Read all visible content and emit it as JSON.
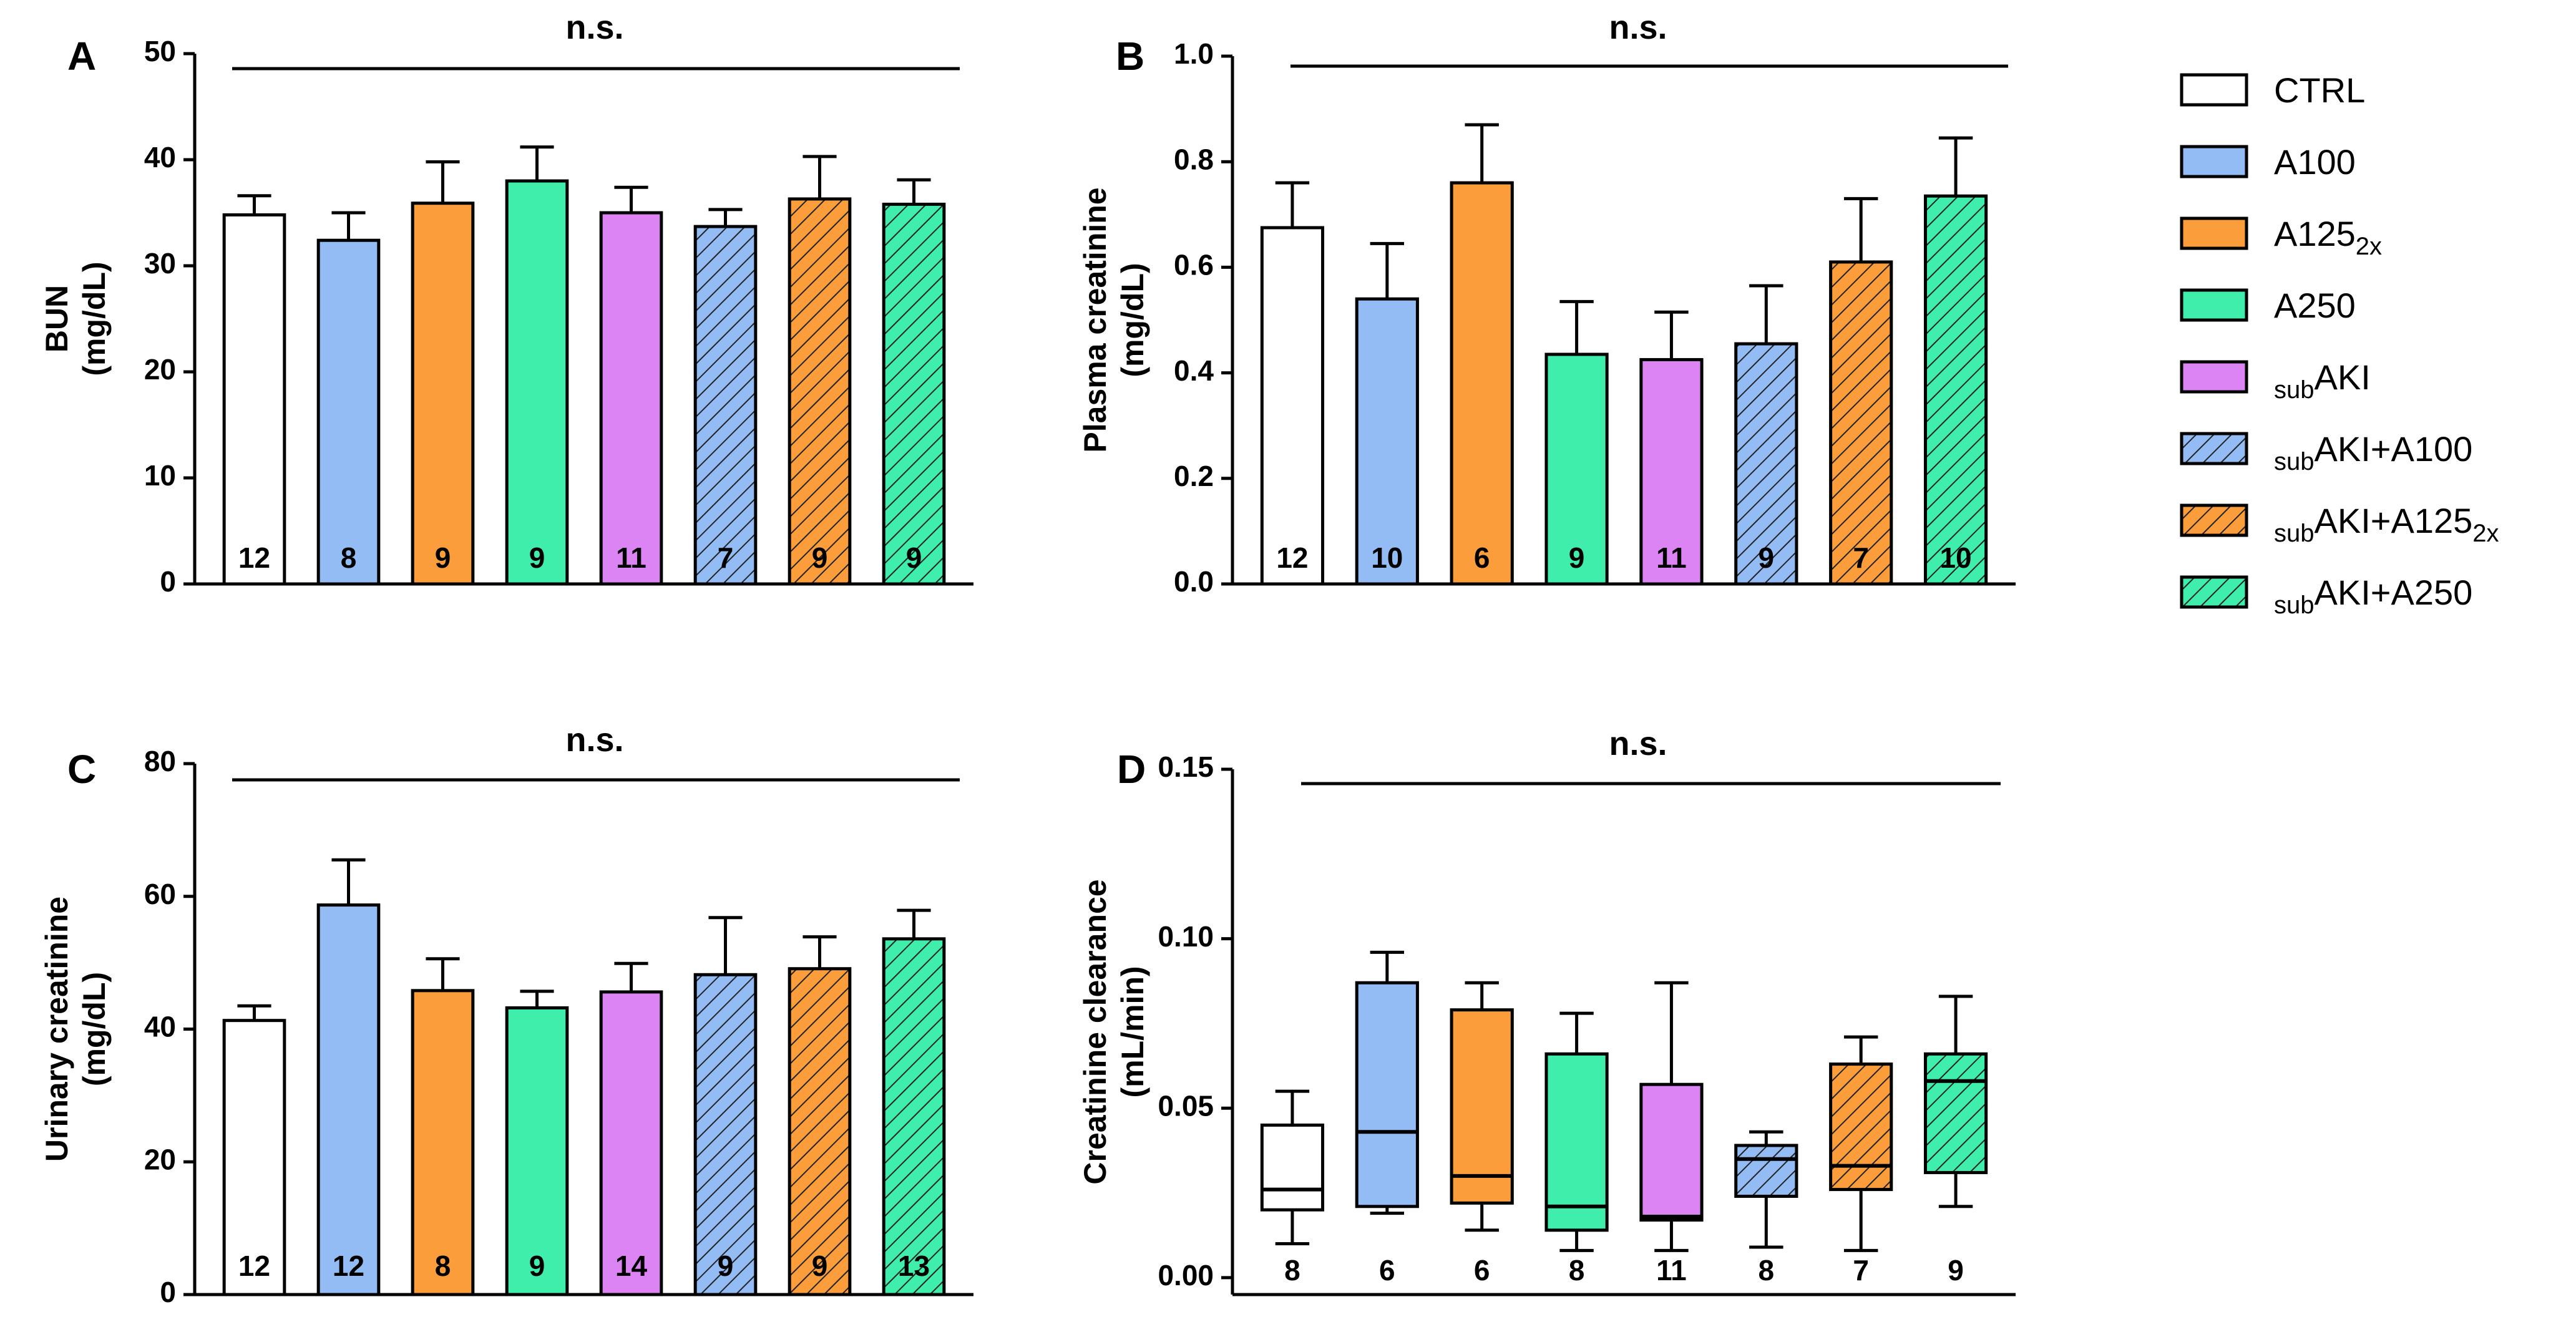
{
  "groups": [
    {
      "key": "ctrl",
      "name": "CTRL",
      "pre": "",
      "main": "CTRL",
      "sub": "",
      "color": "#ffffff",
      "hatched": false
    },
    {
      "key": "a100",
      "name": "A100",
      "pre": "",
      "main": "A100",
      "sub": "",
      "color": "#94bcf4",
      "hatched": false
    },
    {
      "key": "a125",
      "name": "A125 2x",
      "pre": "",
      "main": "A125",
      "sub": "2x",
      "color": "#fc9d3c",
      "hatched": false
    },
    {
      "key": "a250",
      "name": "A250",
      "pre": "",
      "main": "A250",
      "sub": "",
      "color": "#40eeac",
      "hatched": false
    },
    {
      "key": "subaki",
      "name": "sub AKI",
      "pre": "sub",
      "main": "AKI",
      "sub": "",
      "color": "#dc84f4",
      "hatched": false
    },
    {
      "key": "subaki_a100",
      "name": "sub AKI+A100",
      "pre": "sub",
      "main": "AKI+A100",
      "sub": "",
      "color": "#94bcf4",
      "hatched": true
    },
    {
      "key": "subaki_a125",
      "name": "sub AKI+A125 2x",
      "pre": "sub",
      "main": "AKI+A125",
      "sub": "2x",
      "color": "#fc9d3c",
      "hatched": true
    },
    {
      "key": "subaki_a250",
      "name": "sub AKI+A250",
      "pre": "sub",
      "main": "AKI+A250",
      "sub": "",
      "color": "#40eeac",
      "hatched": true
    }
  ],
  "chart_data": [
    {
      "panel": "A",
      "type": "bar",
      "title": "",
      "significance": "n.s.",
      "ylabel_lines": [
        "BUN",
        "(mg/dL)"
      ],
      "ylim": [
        0,
        50
      ],
      "yticks": [
        0,
        10,
        20,
        30,
        40,
        50
      ],
      "ytick_labels": [
        "0",
        "10",
        "20",
        "30",
        "40",
        "50"
      ],
      "values": [
        34.8,
        32.4,
        35.9,
        38.0,
        35.0,
        33.7,
        36.3,
        35.8
      ],
      "errors": [
        1.8,
        2.6,
        3.9,
        3.2,
        2.4,
        1.6,
        4.0,
        2.3
      ],
      "n": [
        "12",
        "8",
        "9",
        "9",
        "11",
        "7",
        "9",
        "9"
      ]
    },
    {
      "panel": "B",
      "type": "bar",
      "title": "",
      "significance": "n.s.",
      "ylabel_lines": [
        "Plasma creatinine",
        "(mg/dL)"
      ],
      "ylim": [
        0,
        1.0
      ],
      "yticks": [
        0,
        0.2,
        0.4,
        0.6,
        0.8,
        1.0
      ],
      "ytick_labels": [
        "0.0",
        "0.2",
        "0.4",
        "0.6",
        "0.8",
        "1.0"
      ],
      "values": [
        0.675,
        0.54,
        0.76,
        0.435,
        0.425,
        0.455,
        0.61,
        0.735
      ],
      "errors": [
        0.085,
        0.105,
        0.11,
        0.1,
        0.09,
        0.11,
        0.12,
        0.11
      ],
      "n": [
        "12",
        "10",
        "6",
        "9",
        "11",
        "9",
        "7",
        "10"
      ]
    },
    {
      "panel": "C",
      "type": "bar",
      "title": "",
      "significance": "n.s.",
      "ylabel_lines": [
        "Urinary creatinine",
        "(mg/dL)"
      ],
      "ylim": [
        0,
        80
      ],
      "yticks": [
        0,
        20,
        40,
        60,
        80
      ],
      "ytick_labels": [
        "0",
        "20",
        "40",
        "60",
        "80"
      ],
      "values": [
        41.3,
        58.7,
        45.8,
        43.2,
        45.6,
        48.2,
        49.1,
        53.6
      ],
      "errors": [
        2.2,
        6.8,
        4.8,
        2.5,
        4.3,
        8.6,
        4.8,
        4.3
      ],
      "n": [
        "12",
        "12",
        "8",
        "9",
        "14",
        "9",
        "9",
        "13"
      ]
    },
    {
      "panel": "D",
      "type": "box",
      "title": "",
      "significance": "n.s.",
      "ylabel_lines": [
        "Creatinine clearance",
        "(mL/min)"
      ],
      "ylim": [
        -0.005,
        0.15
      ],
      "yticks": [
        0,
        0.05,
        0.1,
        0.15
      ],
      "ytick_labels": [
        "0.00",
        "0.05",
        "0.10",
        "0.15"
      ],
      "boxes": [
        {
          "min": 0.01,
          "q1": 0.02,
          "median": 0.026,
          "q3": 0.045,
          "max": 0.055
        },
        {
          "min": 0.019,
          "q1": 0.021,
          "median": 0.043,
          "q3": 0.087,
          "max": 0.096
        },
        {
          "min": 0.014,
          "q1": 0.022,
          "median": 0.03,
          "q3": 0.079,
          "max": 0.087
        },
        {
          "min": 0.008,
          "q1": 0.014,
          "median": 0.021,
          "q3": 0.066,
          "max": 0.078
        },
        {
          "min": 0.008,
          "q1": 0.017,
          "median": 0.018,
          "q3": 0.057,
          "max": 0.087
        },
        {
          "min": 0.009,
          "q1": 0.024,
          "median": 0.035,
          "q3": 0.039,
          "max": 0.043
        },
        {
          "min": 0.008,
          "q1": 0.026,
          "median": 0.033,
          "q3": 0.063,
          "max": 0.071
        },
        {
          "min": 0.021,
          "q1": 0.031,
          "median": 0.058,
          "q3": 0.066,
          "max": 0.083
        }
      ],
      "n": [
        "8",
        "6",
        "6",
        "8",
        "11",
        "8",
        "7",
        "9"
      ]
    }
  ]
}
